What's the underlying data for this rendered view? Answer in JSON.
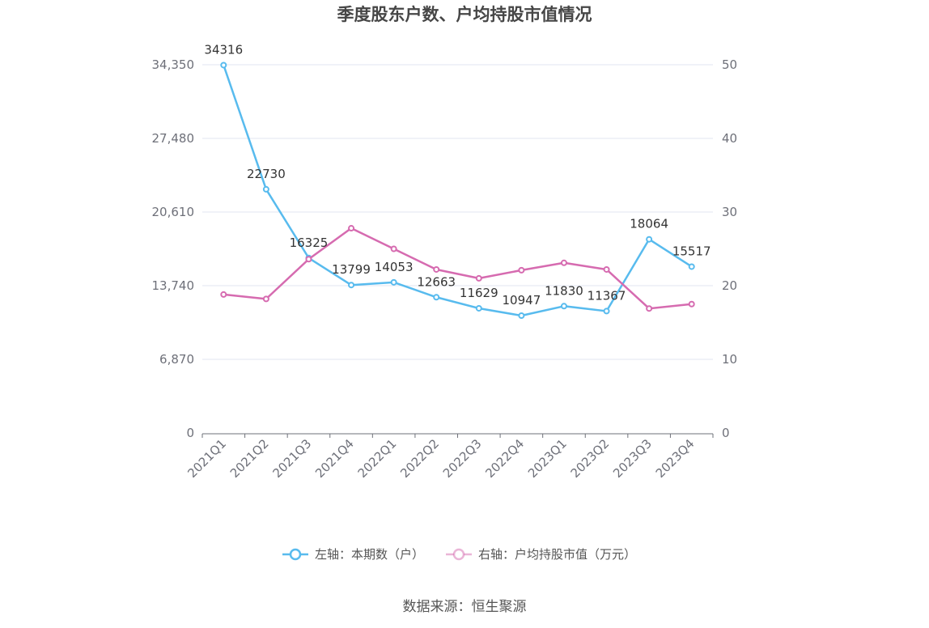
{
  "chart_data": {
    "type": "line",
    "title": "季度股东户数、户均持股市值情况",
    "categories": [
      "2021Q1",
      "2021Q2",
      "2021Q3",
      "2021Q4",
      "2022Q1",
      "2022Q2",
      "2022Q3",
      "2022Q4",
      "2023Q1",
      "2023Q2",
      "2023Q3",
      "2023Q4"
    ],
    "series": [
      {
        "name": "左轴：本期数（户）",
        "axis": "left",
        "color": "#58bbee",
        "show_labels": true,
        "values": [
          34316,
          22730,
          16325,
          13799,
          14053,
          12663,
          11629,
          10947,
          11830,
          11367,
          18064,
          15517
        ]
      },
      {
        "name": "右轴：户均持股市值（万元）",
        "axis": "right",
        "color": "#d66bb0",
        "show_labels": false,
        "values": [
          18.8,
          18.2,
          23.6,
          27.8,
          25.0,
          22.2,
          21.0,
          22.1,
          23.1,
          22.2,
          16.9,
          17.5
        ]
      }
    ],
    "y_left": {
      "range": [
        0,
        34350
      ],
      "ticks": [
        "0",
        "6,870",
        "13,740",
        "20,610",
        "27,480",
        "34,350"
      ]
    },
    "y_right": {
      "range": [
        0,
        50
      ],
      "ticks": [
        "0",
        "10",
        "20",
        "30",
        "40",
        "50"
      ]
    },
    "grid": true,
    "legend_position": "bottom"
  },
  "source": "数据来源：恒生聚源"
}
